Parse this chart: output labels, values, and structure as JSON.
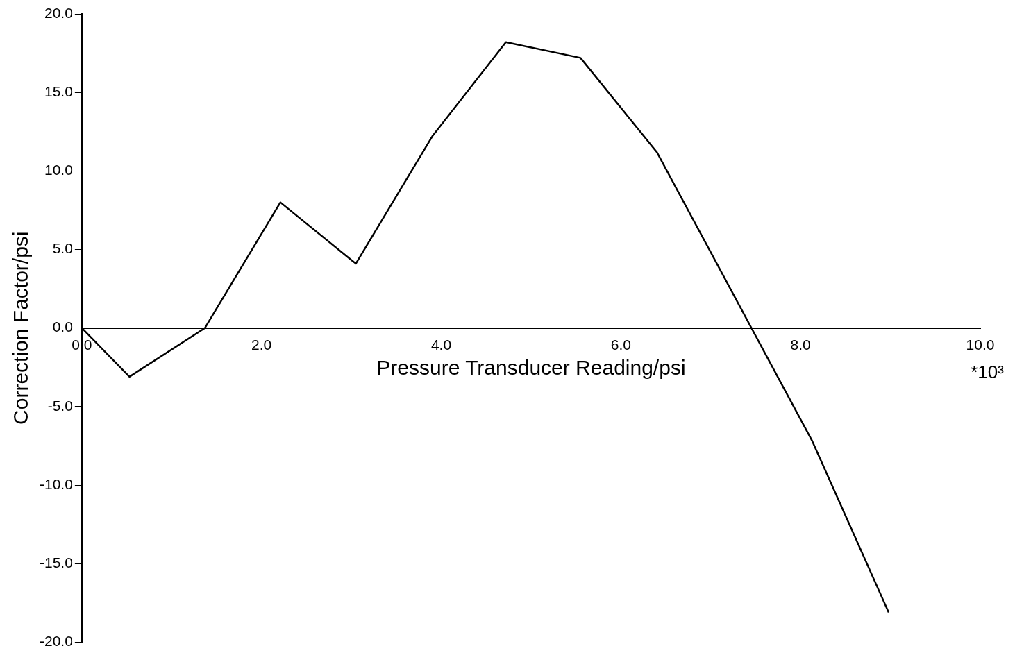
{
  "chart_data": {
    "type": "line",
    "xlabel": "Pressure Transducer Reading/psi",
    "ylabel": "Correction Factor/psi",
    "x": [
      0,
      0.53,
      1.37,
      2.21,
      3.05,
      3.9,
      4.72,
      5.55,
      6.4,
      8.13,
      8.98
    ],
    "values": [
      0,
      -3.1,
      0,
      8.0,
      4.1,
      12.2,
      18.2,
      17.2,
      11.2,
      -7.2,
      -18.1
    ],
    "color": "#000000",
    "marker": "none",
    "line_style": "solid",
    "xlim": [
      0,
      10
    ],
    "ylim": [
      -20,
      20
    ],
    "xticks": [
      {
        "value": 0,
        "label": "0.0"
      },
      {
        "value": 2,
        "label": "2.0"
      },
      {
        "value": 4,
        "label": "4.0"
      },
      {
        "value": 6,
        "label": "6.0"
      },
      {
        "value": 8,
        "label": "8.0"
      },
      {
        "value": 10,
        "label": "10.0"
      }
    ],
    "yticks": [
      {
        "value": -20,
        "label": "-20.0"
      },
      {
        "value": -15,
        "label": "-15.0"
      },
      {
        "value": -10,
        "label": "-10.0"
      },
      {
        "value": -5,
        "label": "-5.0"
      },
      {
        "value": 0,
        "label": "0.0"
      },
      {
        "value": 5,
        "label": "5.0"
      },
      {
        "value": 10,
        "label": "10.0"
      },
      {
        "value": 15,
        "label": "15.0"
      },
      {
        "value": 20,
        "label": "20.0"
      }
    ],
    "annotations": [
      "*10³"
    ]
  }
}
